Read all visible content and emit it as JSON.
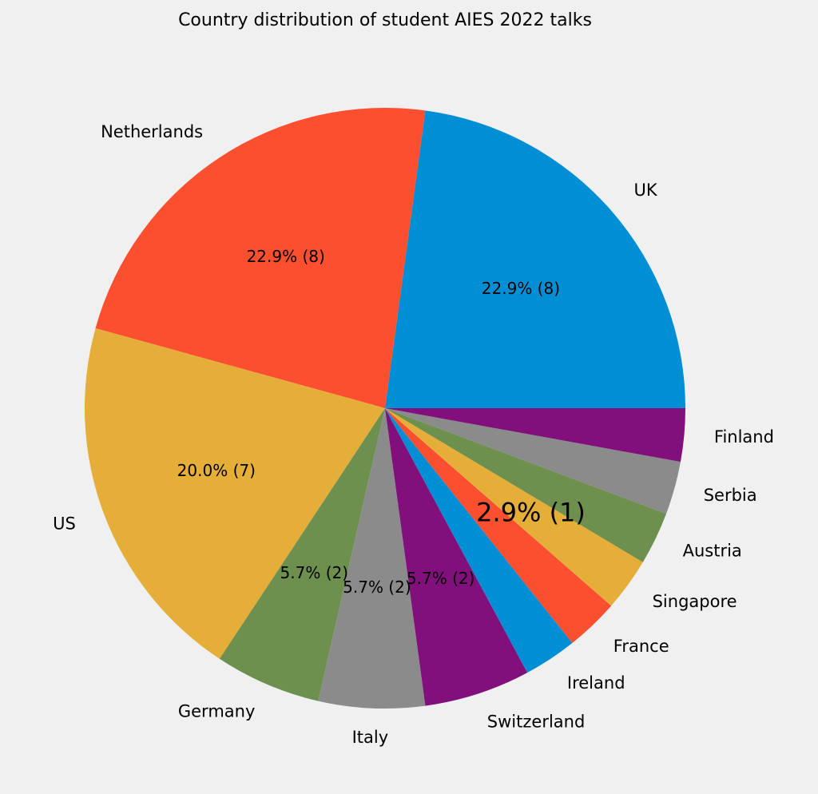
{
  "chart_data": {
    "type": "pie",
    "title": "Country distribution of student AIES 2022 talks",
    "categories": [
      "UK",
      "Netherlands",
      "US",
      "Germany",
      "Italy",
      "Switzerland",
      "Ireland",
      "France",
      "Singapore",
      "Austria",
      "Serbia",
      "Finland"
    ],
    "values": [
      8,
      8,
      7,
      2,
      2,
      2,
      1,
      1,
      1,
      1,
      1,
      1
    ],
    "colors": [
      "#008fd5",
      "#fc4f30",
      "#e5ae38",
      "#6d904f",
      "#8b8b8b",
      "#810f7c",
      "#008fd5",
      "#fc4f30",
      "#e5ae38",
      "#6d904f",
      "#8b8b8b",
      "#810f7c"
    ],
    "pct_labels": [
      "22.9% (8)",
      "22.9% (8)",
      "20.0% (7)",
      "5.7% (2)",
      "5.7% (2)",
      "5.7% (2)",
      "",
      "",
      "2.9% (1)",
      "",
      "",
      ""
    ],
    "pct_label_large_index": 8,
    "start_angle": 0,
    "direction": "counterclockwise",
    "background": "#f0f0f0"
  }
}
